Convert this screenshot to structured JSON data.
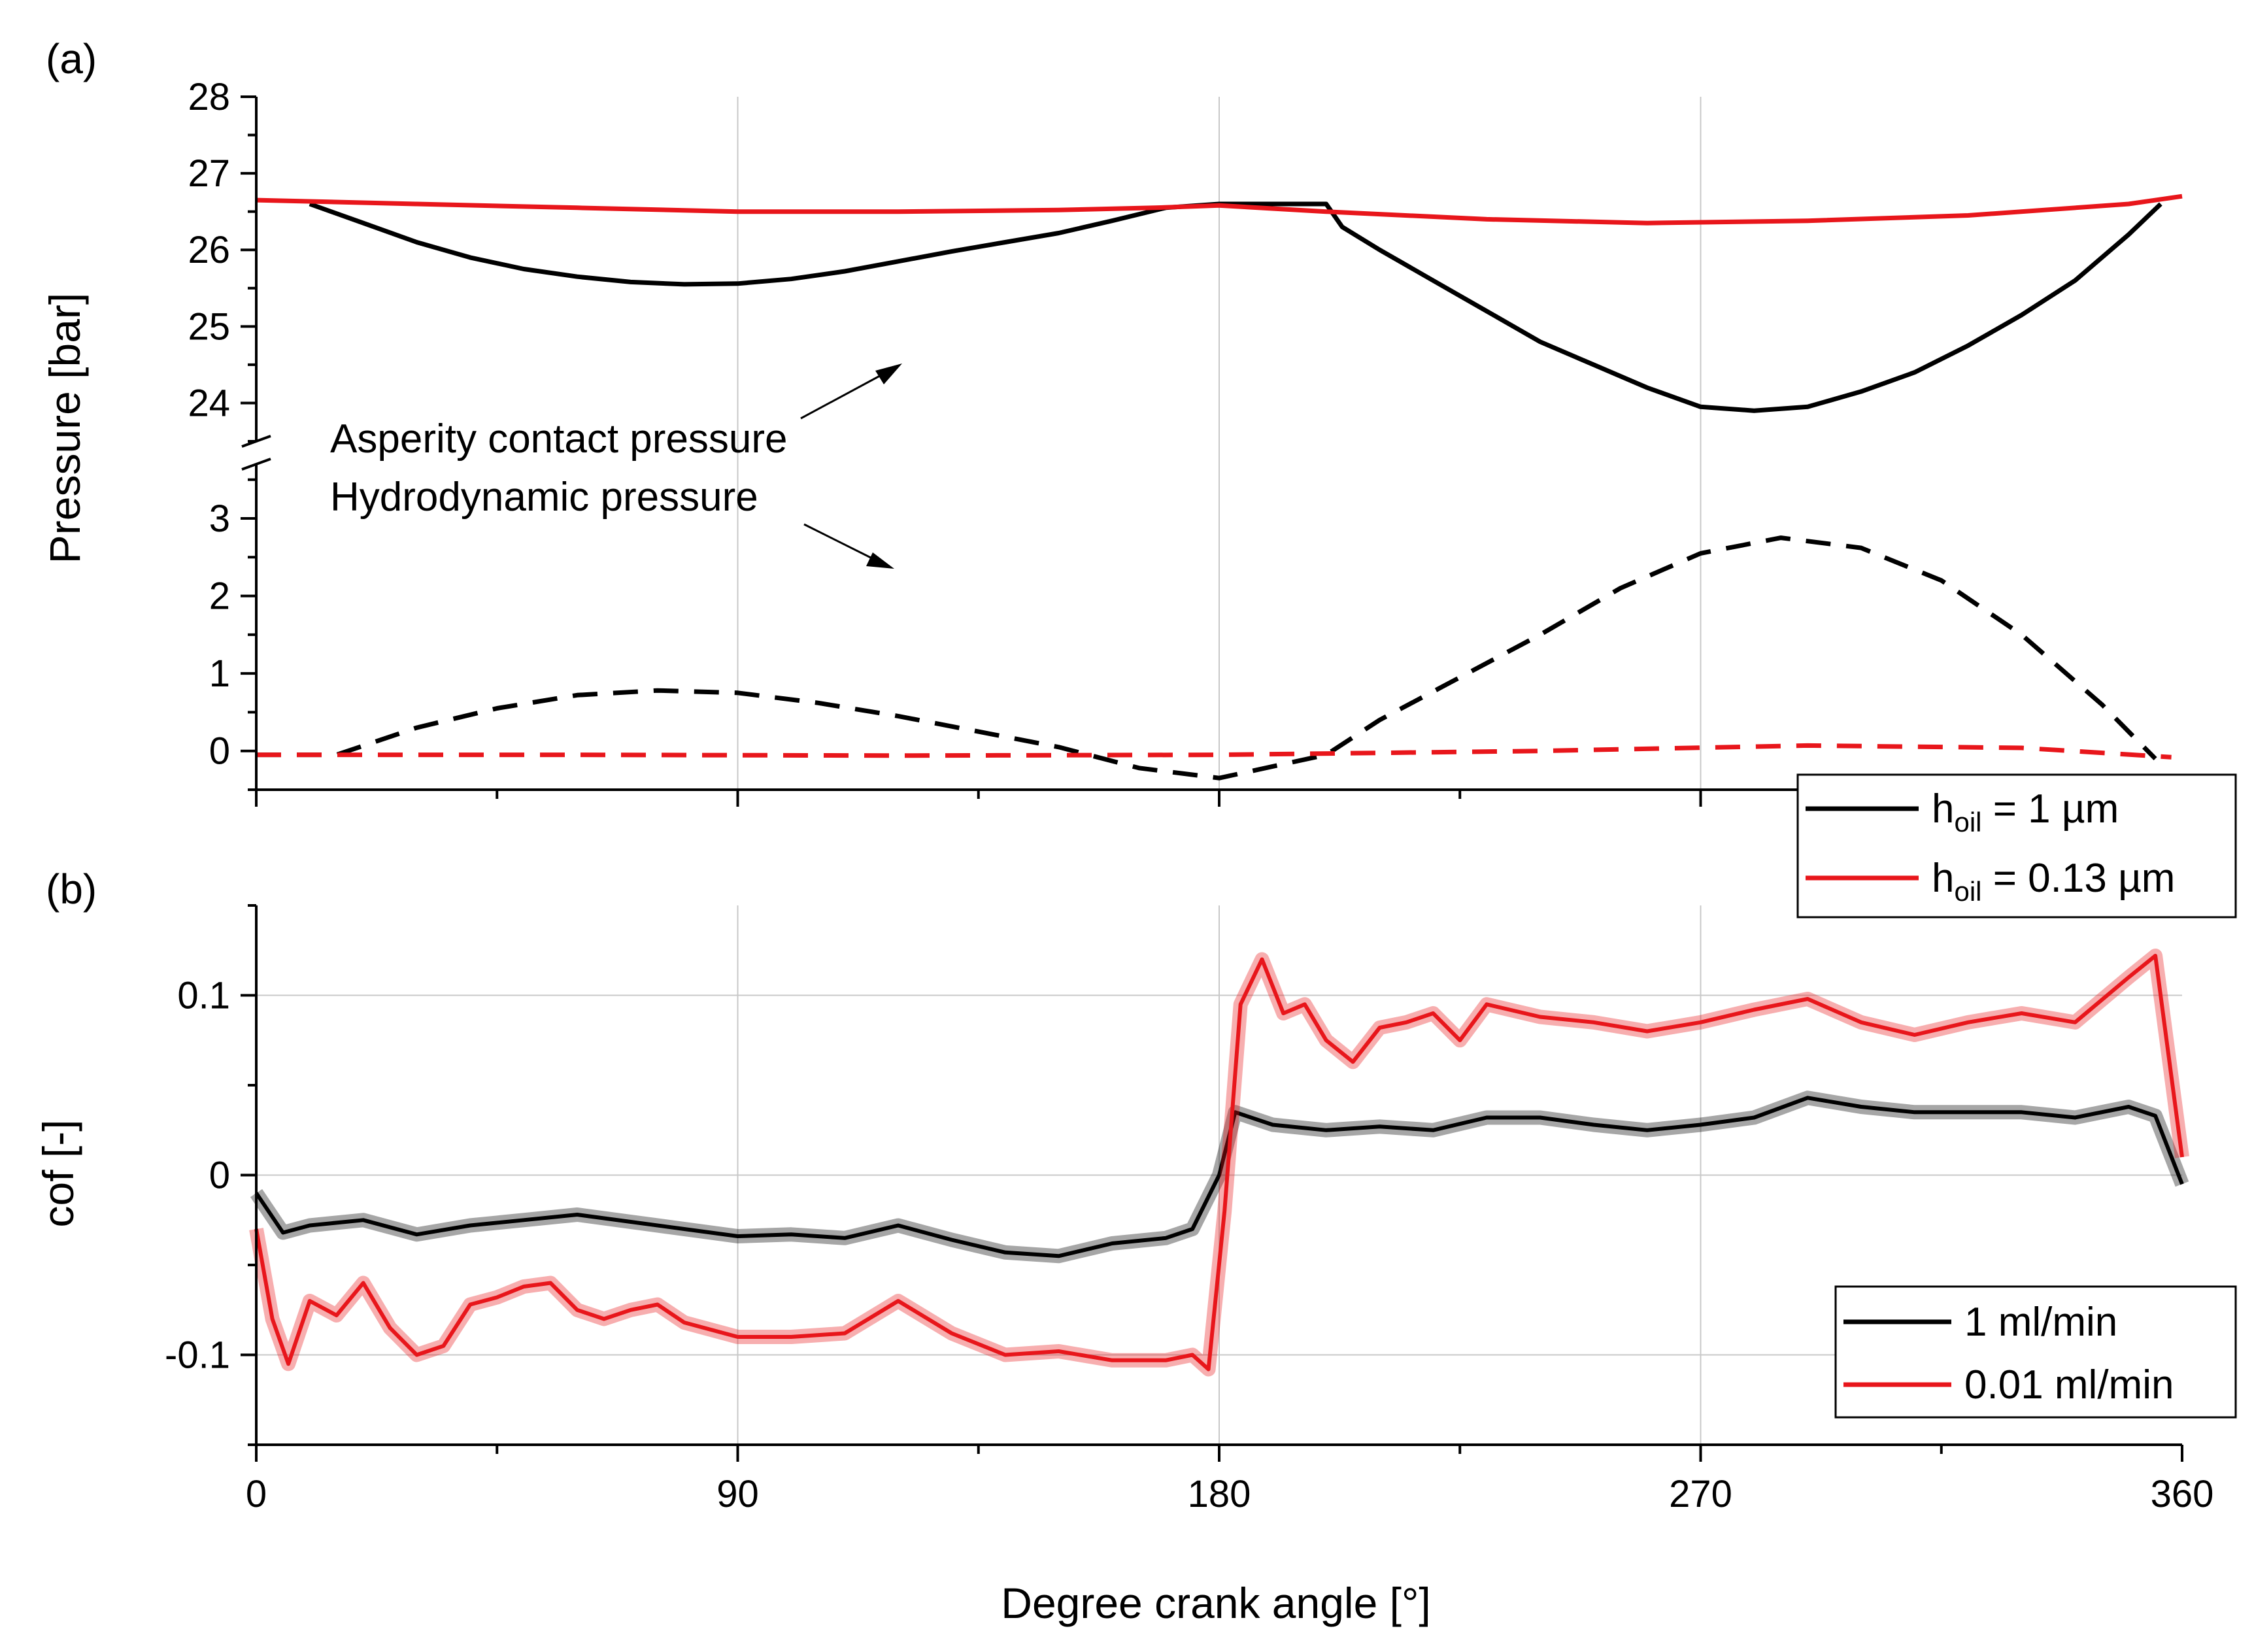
{
  "chart_data": [
    {
      "type": "line",
      "panel_label": "(a)",
      "ylabel": "Pressure [bar]",
      "xlabel": "Degree crank angle [°]",
      "xlim": [
        0,
        360
      ],
      "x_ticks": [
        0,
        90,
        180,
        270,
        360
      ],
      "y_segments": [
        {
          "name": "upper",
          "ylim": [
            23.5,
            28
          ],
          "ticks": [
            24,
            25,
            26,
            27,
            28
          ]
        },
        {
          "name": "lower",
          "ylim": [
            -0.5,
            3.7
          ],
          "ticks": [
            0,
            1,
            2,
            3
          ]
        }
      ],
      "axis_break": true,
      "annotations": [
        "Asperity contact pressure",
        "Hydrodynamic pressure"
      ],
      "legend": {
        "position": "bottom-right",
        "entries": [
          {
            "main": "h",
            "sub": "oil",
            "rest": " = 1 µm",
            "color": "#000000"
          },
          {
            "main": "h",
            "sub": "oil",
            "rest": " = 0.13 µm",
            "color": "#e8161b"
          }
        ]
      },
      "series": [
        {
          "name": "asperity contact pressure, h_oil = 1 µm",
          "segment": "upper",
          "color": "#000000",
          "style": "solid",
          "x": [
            10,
            20,
            30,
            40,
            50,
            60,
            70,
            80,
            90,
            100,
            110,
            120,
            130,
            140,
            150,
            160,
            170,
            180,
            190,
            200,
            203,
            210,
            220,
            230,
            240,
            250,
            260,
            270,
            280,
            290,
            300,
            310,
            320,
            330,
            340,
            350,
            356
          ],
          "y": [
            26.6,
            26.35,
            26.1,
            25.9,
            25.75,
            25.65,
            25.58,
            25.55,
            25.56,
            25.62,
            25.72,
            25.85,
            25.98,
            26.1,
            26.22,
            26.38,
            26.55,
            26.6,
            26.6,
            26.6,
            26.3,
            26.0,
            25.6,
            25.2,
            24.8,
            24.5,
            24.2,
            23.95,
            23.9,
            23.95,
            24.15,
            24.4,
            24.75,
            25.15,
            25.6,
            26.2,
            26.6
          ]
        },
        {
          "name": "asperity contact pressure, h_oil = 0.13 µm",
          "segment": "upper",
          "color": "#e8161b",
          "style": "solid",
          "x": [
            0,
            30,
            60,
            90,
            120,
            150,
            168,
            180,
            200,
            230,
            260,
            290,
            320,
            350,
            360
          ],
          "y": [
            26.65,
            26.6,
            26.55,
            26.5,
            26.5,
            26.52,
            26.55,
            26.58,
            26.5,
            26.4,
            26.35,
            26.38,
            26.45,
            26.6,
            26.7
          ]
        },
        {
          "name": "hydrodynamic pressure, h_oil = 1 µm",
          "segment": "lower",
          "color": "#000000",
          "style": "dashed",
          "x": [
            0,
            15,
            30,
            45,
            60,
            75,
            90,
            105,
            120,
            135,
            150,
            165,
            180,
            200,
            210,
            225,
            240,
            255,
            270,
            285,
            300,
            315,
            330,
            345,
            355
          ],
          "y": [
            -0.05,
            -0.05,
            0.3,
            0.55,
            0.72,
            0.78,
            0.75,
            0.62,
            0.45,
            0.25,
            0.05,
            -0.22,
            -0.35,
            -0.05,
            0.4,
            0.95,
            1.5,
            2.1,
            2.55,
            2.75,
            2.62,
            2.2,
            1.5,
            0.6,
            -0.1
          ]
        },
        {
          "name": "hydrodynamic pressure, h_oil = 0.13 µm",
          "segment": "lower",
          "color": "#e8161b",
          "style": "dashed",
          "x": [
            0,
            60,
            120,
            180,
            240,
            290,
            330,
            358
          ],
          "y": [
            -0.05,
            -0.05,
            -0.06,
            -0.05,
            0.0,
            0.07,
            0.04,
            -0.08
          ]
        }
      ]
    },
    {
      "type": "line",
      "panel_label": "(b)",
      "ylabel": "cof [-]",
      "xlabel": "Degree crank angle [°]",
      "xlim": [
        0,
        360
      ],
      "ylim": [
        -0.15,
        0.15
      ],
      "x_ticks": [
        0,
        90,
        180,
        270,
        360
      ],
      "y_ticks": [
        -0.1,
        0,
        0.1
      ],
      "y_tick_labels": [
        "-0.1",
        "0",
        "0.1"
      ],
      "legend": {
        "position": "bottom-right",
        "entries": [
          {
            "label": "1 ml/min",
            "color": "#000000"
          },
          {
            "label": "0.01 ml/min",
            "color": "#e8161b"
          }
        ]
      },
      "series": [
        {
          "name": "1 ml/min",
          "color": "#000000",
          "style": "solid",
          "x": [
            0,
            5,
            10,
            20,
            30,
            40,
            50,
            60,
            70,
            80,
            90,
            100,
            110,
            120,
            130,
            140,
            150,
            160,
            170,
            175,
            180,
            183,
            190,
            200,
            210,
            220,
            230,
            240,
            250,
            260,
            270,
            280,
            290,
            300,
            310,
            320,
            330,
            340,
            350,
            355,
            360
          ],
          "y": [
            -0.01,
            -0.032,
            -0.028,
            -0.025,
            -0.033,
            -0.028,
            -0.025,
            -0.022,
            -0.026,
            -0.03,
            -0.034,
            -0.033,
            -0.035,
            -0.028,
            -0.036,
            -0.043,
            -0.045,
            -0.038,
            -0.035,
            -0.03,
            0.0,
            0.035,
            0.028,
            0.025,
            0.027,
            0.025,
            0.032,
            0.032,
            0.028,
            0.025,
            0.028,
            0.032,
            0.043,
            0.038,
            0.035,
            0.035,
            0.035,
            0.032,
            0.038,
            0.033,
            -0.005
          ]
        },
        {
          "name": "0.01 ml/min",
          "color": "#e8161b",
          "style": "solid",
          "x": [
            0,
            3,
            6,
            10,
            15,
            20,
            25,
            30,
            35,
            40,
            45,
            50,
            55,
            60,
            65,
            70,
            75,
            80,
            90,
            100,
            110,
            120,
            130,
            140,
            150,
            160,
            170,
            175,
            178,
            181,
            184,
            188,
            192,
            196,
            200,
            205,
            210,
            215,
            220,
            225,
            230,
            240,
            250,
            260,
            270,
            280,
            290,
            300,
            310,
            320,
            330,
            340,
            350,
            355,
            360
          ],
          "y": [
            -0.03,
            -0.08,
            -0.105,
            -0.07,
            -0.078,
            -0.06,
            -0.085,
            -0.1,
            -0.095,
            -0.072,
            -0.068,
            -0.062,
            -0.06,
            -0.075,
            -0.08,
            -0.075,
            -0.072,
            -0.082,
            -0.09,
            -0.09,
            -0.088,
            -0.07,
            -0.088,
            -0.1,
            -0.098,
            -0.103,
            -0.103,
            -0.1,
            -0.108,
            -0.02,
            0.095,
            0.12,
            0.09,
            0.095,
            0.075,
            0.063,
            0.082,
            0.085,
            0.09,
            0.075,
            0.095,
            0.088,
            0.085,
            0.08,
            0.085,
            0.092,
            0.098,
            0.085,
            0.078,
            0.085,
            0.09,
            0.085,
            0.11,
            0.122,
            0.01
          ]
        }
      ]
    }
  ]
}
